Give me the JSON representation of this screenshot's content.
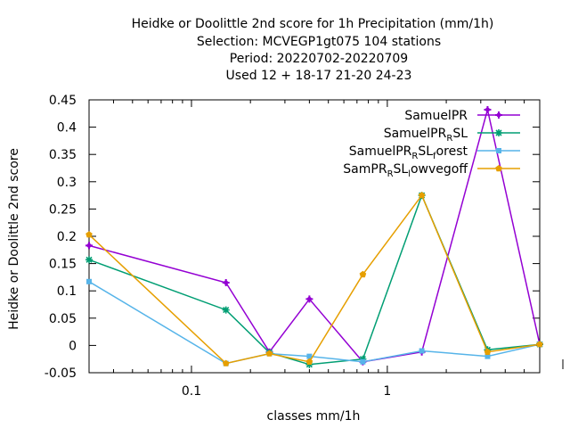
{
  "chart_data": {
    "type": "line",
    "title_lines": [
      "Heidke or Doolittle 2nd score  for 1h Precipitation (mm/1h)",
      "Selection: MCVEGP1gt075    104 stations",
      "Period: 20220702-20220709",
      "Used  12 + 18-17 21-20 24-23"
    ],
    "xlabel": "classes mm/1h",
    "ylabel": "Heidke or Doolittle 2nd score",
    "xscale": "log",
    "xlim": [
      0.03,
      6.0
    ],
    "ylim": [
      -0.05,
      0.45
    ],
    "x_ticks": [
      {
        "value": 0.1,
        "label": "0.1"
      },
      {
        "value": 1,
        "label": "1"
      }
    ],
    "y_ticks": [
      {
        "value": -0.05,
        "label": "-0.05"
      },
      {
        "value": 0,
        "label": "0"
      },
      {
        "value": 0.05,
        "label": "0.05"
      },
      {
        "value": 0.1,
        "label": "0.1"
      },
      {
        "value": 0.15,
        "label": "0.15"
      },
      {
        "value": 0.2,
        "label": "0.2"
      },
      {
        "value": 0.25,
        "label": "0.25"
      },
      {
        "value": 0.3,
        "label": "0.3"
      },
      {
        "value": 0.35,
        "label": "0.35"
      },
      {
        "value": 0.4,
        "label": "0.4"
      },
      {
        "value": 0.45,
        "label": "0.45"
      }
    ],
    "grid": false,
    "legend_position": "top-right",
    "x": [
      0.03,
      0.15,
      0.25,
      0.4,
      0.75,
      1.5,
      3.25,
      6.0
    ],
    "series": [
      {
        "name_parts": [
          {
            "t": "SamuelPR",
            "sub": false
          }
        ],
        "color": "#9400d3",
        "marker": "plus",
        "values": [
          0.183,
          0.115,
          -0.012,
          0.085,
          -0.03,
          -0.012,
          0.432,
          0.002
        ]
      },
      {
        "name_parts": [
          {
            "t": "SamuelPR",
            "sub": false
          },
          {
            "t": "R",
            "sub": true
          },
          {
            "t": "SL",
            "sub": false
          }
        ],
        "color": "#009e73",
        "marker": "star",
        "values": [
          0.157,
          0.065,
          -0.013,
          -0.035,
          -0.025,
          0.275,
          -0.008,
          0.002
        ]
      },
      {
        "name_parts": [
          {
            "t": "SamuelPR",
            "sub": false
          },
          {
            "t": "R",
            "sub": true
          },
          {
            "t": "SL",
            "sub": false
          },
          {
            "t": "f",
            "sub": true
          },
          {
            "t": "orest",
            "sub": false
          }
        ],
        "color": "#56b4e9",
        "marker": "square",
        "values": [
          0.117,
          -0.033,
          -0.015,
          -0.02,
          -0.03,
          -0.01,
          -0.02,
          0.002
        ]
      },
      {
        "name_parts": [
          {
            "t": "SamPR",
            "sub": false
          },
          {
            "t": "R",
            "sub": true
          },
          {
            "t": "SL",
            "sub": false
          },
          {
            "t": "l",
            "sub": true
          },
          {
            "t": "owvegoff",
            "sub": false
          }
        ],
        "color": "#e69f00",
        "marker": "pentagon",
        "values": [
          0.203,
          -0.033,
          -0.015,
          -0.03,
          0.13,
          0.275,
          -0.012,
          0.002
        ]
      }
    ]
  }
}
